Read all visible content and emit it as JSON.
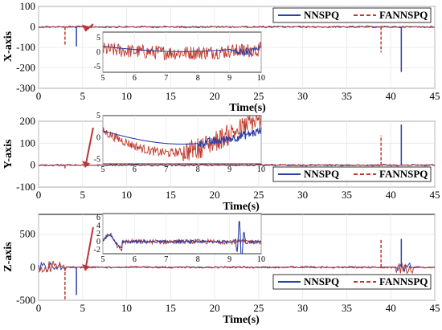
{
  "chart_data": [
    {
      "type": "line",
      "ylabel": "X-axis",
      "xlabel": "Time(s)",
      "xlim": [
        0,
        45
      ],
      "ylim": [
        -300,
        100
      ],
      "xticks": [
        0,
        5,
        10,
        15,
        20,
        25,
        30,
        35,
        40,
        45
      ],
      "yticks": [
        100,
        0,
        -100,
        -200,
        -300
      ],
      "legend": {
        "placement": "top-right",
        "entries": [
          "NNSPQ",
          "FANNSPQ"
        ]
      },
      "grid": true,
      "series": [
        {
          "name": "NNSPQ",
          "color": "#2b3fa8",
          "style": "solid",
          "spikes": [
            {
              "x": 4.3,
              "y": -95
            },
            {
              "x": 41.2,
              "y": -220
            }
          ]
        },
        {
          "name": "FANNSPQ",
          "color": "#c0392b",
          "style": "dashed",
          "spikes": [
            {
              "x": 3.0,
              "y": -90
            },
            {
              "x": 38.9,
              "y": -125
            }
          ]
        }
      ],
      "inset": {
        "xlim": [
          5,
          10
        ],
        "ylim": [
          -7,
          7
        ],
        "xticks": [
          5,
          6,
          7,
          8,
          9,
          10
        ],
        "yticks": [
          5,
          0,
          -5
        ],
        "pattern": "x"
      }
    },
    {
      "type": "line",
      "ylabel": "Y-axis",
      "xlabel": "Time(s)",
      "xlim": [
        0,
        45
      ],
      "ylim": [
        -100,
        200
      ],
      "xticks": [
        0,
        5,
        10,
        15,
        20,
        25,
        30,
        35,
        40,
        45
      ],
      "yticks": [
        200,
        100,
        0,
        -100
      ],
      "legend": {
        "placement": "bottom-right",
        "entries": [
          "NNSPQ",
          "FANNSPQ"
        ]
      },
      "grid": true,
      "series": [
        {
          "name": "NNSPQ",
          "color": "#2b3fa8",
          "style": "solid",
          "spikes": [
            {
              "x": 41.2,
              "y": 185
            }
          ]
        },
        {
          "name": "FANNSPQ",
          "color": "#c0392b",
          "style": "dashed",
          "spikes": [
            {
              "x": 3.0,
              "y": -20
            },
            {
              "x": 38.9,
              "y": 135
            }
          ]
        }
      ],
      "inset": {
        "xlim": [
          5,
          10
        ],
        "ylim": [
          -6,
          5
        ],
        "xticks": [
          5,
          6,
          7,
          8,
          9,
          10
        ],
        "yticks": [
          5,
          0,
          -5
        ],
        "pattern": "y"
      }
    },
    {
      "type": "line",
      "ylabel": "Z-axis",
      "xlabel": "Time(s)",
      "xlim": [
        0,
        45
      ],
      "ylim": [
        -500,
        800
      ],
      "xticks": [
        0,
        5,
        10,
        15,
        20,
        25,
        30,
        35,
        40,
        45
      ],
      "yticks": [
        500,
        0,
        -500
      ],
      "legend": {
        "placement": "bottom-right",
        "entries": [
          "NNSPQ",
          "FANNSPQ"
        ]
      },
      "grid": true,
      "series": [
        {
          "name": "NNSPQ",
          "color": "#2b3fa8",
          "style": "solid",
          "spikes": [
            {
              "x": 4.3,
              "y": -420
            },
            {
              "x": 41.2,
              "y": 430
            }
          ]
        },
        {
          "name": "FANNSPQ",
          "color": "#c0392b",
          "style": "dashed",
          "spikes": [
            {
              "x": 3.0,
              "y": -500
            },
            {
              "x": 38.9,
              "y": 430
            }
          ]
        }
      ],
      "inset": {
        "xlim": [
          5,
          10
        ],
        "ylim": [
          -3,
          7
        ],
        "xticks": [
          5,
          6,
          7,
          8,
          9,
          10
        ],
        "yticks": [
          6,
          4,
          2,
          0,
          -2
        ],
        "pattern": "z"
      }
    }
  ]
}
